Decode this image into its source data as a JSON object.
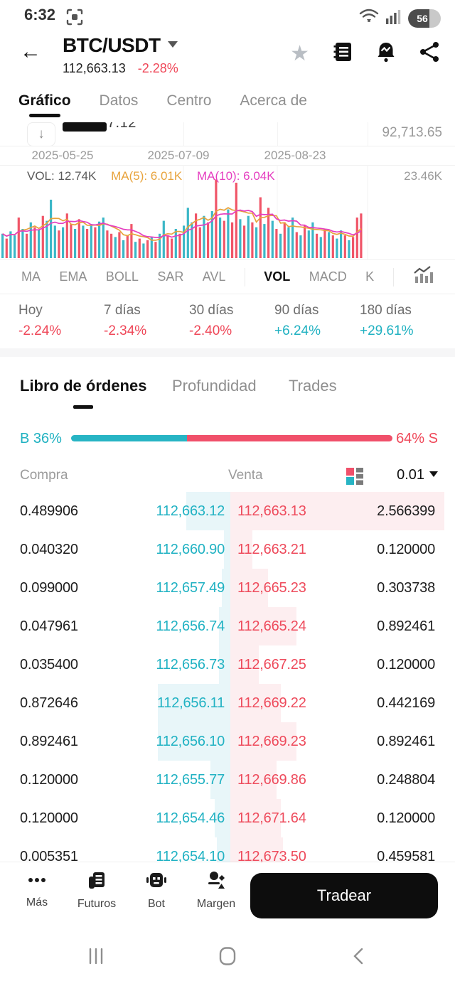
{
  "status_bar": {
    "time": "6:32",
    "battery_level": "56"
  },
  "header": {
    "pair": "BTC/USDT",
    "price": "112,663.13",
    "change": "-2.28%"
  },
  "nav_tabs": {
    "items": [
      "Gráfico",
      "Datos",
      "Centro",
      "Acerca de"
    ],
    "active": 0
  },
  "price_chart": {
    "truncated_price_label": "0,077.12",
    "axis_label": "92,713.65",
    "dates": [
      "2025-05-25",
      "2025-07-09",
      "2025-08-23"
    ]
  },
  "volume_pane": {
    "vol_label": "VOL: 12.74K",
    "ma5_label": "MA(5): 6.01K",
    "ma10_label": "MA(10): 6.04K",
    "axis_label": "23.46K"
  },
  "chart_data": {
    "type": "bar",
    "title": "BTC/USDT volume pane with MA(5)/MA(10) overlay",
    "ylabel": "Volume",
    "axis_max_label": "23.46K",
    "axis_max_k": 23.46,
    "latest_vol_k": 12.74,
    "ma5_k": 6.01,
    "ma10_k": 6.04,
    "values_rel": [
      0.3,
      0.24,
      0.33,
      0.28,
      0.5,
      0.36,
      0.3,
      0.44,
      0.38,
      0.35,
      0.52,
      0.46,
      0.72,
      0.4,
      0.34,
      0.38,
      0.55,
      0.42,
      0.36,
      0.48,
      0.4,
      0.36,
      0.42,
      0.38,
      0.45,
      0.5,
      0.34,
      0.3,
      0.26,
      0.32,
      0.22,
      0.28,
      0.42,
      0.2,
      0.24,
      0.18,
      0.22,
      0.26,
      0.2,
      0.3,
      0.46,
      0.28,
      0.24,
      0.36,
      0.3,
      0.4,
      0.62,
      0.44,
      0.55,
      0.38,
      0.52,
      0.44,
      0.58,
      0.97,
      0.5,
      0.46,
      0.6,
      0.44,
      0.93,
      0.48,
      0.4,
      0.52,
      0.44,
      0.38,
      0.75,
      0.42,
      0.62,
      0.46,
      0.36,
      0.3,
      0.44,
      0.38,
      0.5,
      0.32,
      0.28,
      0.4,
      0.34,
      0.44,
      0.3,
      0.26,
      0.36,
      0.32,
      0.28,
      0.24,
      0.34,
      0.28,
      0.22,
      0.26,
      0.5,
      0.55
    ],
    "sides": [
      "u",
      "d",
      "u",
      "u",
      "d",
      "u",
      "d",
      "u",
      "d",
      "u",
      "d",
      "u",
      "u",
      "u",
      "d",
      "u",
      "d",
      "d",
      "u",
      "d",
      "u",
      "d",
      "u",
      "d",
      "u",
      "u",
      "d",
      "d",
      "u",
      "d",
      "u",
      "d",
      "d",
      "u",
      "d",
      "u",
      "d",
      "u",
      "d",
      "u",
      "u",
      "d",
      "d",
      "u",
      "d",
      "u",
      "u",
      "u",
      "d",
      "d",
      "u",
      "d",
      "u",
      "d",
      "u",
      "d",
      "u",
      "d",
      "d",
      "u",
      "d",
      "u",
      "d",
      "u",
      "d",
      "u",
      "d",
      "u",
      "d",
      "u",
      "d",
      "u",
      "u",
      "d",
      "u",
      "d",
      "u",
      "u",
      "d",
      "u",
      "d",
      "u",
      "d",
      "u",
      "u",
      "d",
      "u",
      "d",
      "d",
      "d"
    ],
    "colors": {
      "up": "#3bb7c7",
      "down": "#f05568",
      "ma5": "#e8a33c",
      "ma10": "#e53ec0"
    },
    "ma_windows": [
      5,
      10
    ]
  },
  "indicator_bar": {
    "items": [
      "MA",
      "EMA",
      "BOLL",
      "SAR",
      "AVL",
      "VOL",
      "MACD",
      "K"
    ],
    "active": 5,
    "dividers_after": [
      4,
      7
    ]
  },
  "periods": [
    {
      "label": "Hoy",
      "value": "-2.24%",
      "direction": "down"
    },
    {
      "label": "7 días",
      "value": "-2.34%",
      "direction": "down"
    },
    {
      "label": "30 días",
      "value": "-2.40%",
      "direction": "down"
    },
    {
      "label": "90 días",
      "value": "+6.24%",
      "direction": "up"
    },
    {
      "label": "180 días",
      "value": "+29.61%",
      "direction": "up"
    }
  ],
  "orderbook_tabs": {
    "items": [
      "Libro de órdenes",
      "Profundidad",
      "Trades"
    ],
    "active": 0,
    "lefts": [
      28,
      242,
      406
    ]
  },
  "ratio_bar": {
    "buy_label": "B 36%",
    "sell_label": "64% S",
    "buy_pct": 36
  },
  "orderbook": {
    "col_bid": "Compra",
    "col_ask": "Venta",
    "tick_size": "0.01",
    "rows": [
      {
        "bid_qty": "0.489906",
        "bid_price": "112,663.12",
        "ask_price": "112,663.13",
        "ask_qty": "2.566399",
        "bid_depth": 0.2,
        "ask_depth": 0.97
      },
      {
        "bid_qty": "0.040320",
        "bid_price": "112,660.90",
        "ask_price": "112,663.21",
        "ask_qty": "0.120000",
        "bid_depth": 0.03,
        "ask_depth": 0.1
      },
      {
        "bid_qty": "0.099000",
        "bid_price": "112,657.49",
        "ask_price": "112,665.23",
        "ask_qty": "0.303738",
        "bid_depth": 0.04,
        "ask_depth": 0.17
      },
      {
        "bid_qty": "0.047961",
        "bid_price": "112,656.74",
        "ask_price": "112,665.24",
        "ask_qty": "0.892461",
        "bid_depth": 0.05,
        "ask_depth": 0.3
      },
      {
        "bid_qty": "0.035400",
        "bid_price": "112,656.73",
        "ask_price": "112,667.25",
        "ask_qty": "0.120000",
        "bid_depth": 0.05,
        "ask_depth": 0.13
      },
      {
        "bid_qty": "0.872646",
        "bid_price": "112,656.11",
        "ask_price": "112,669.22",
        "ask_qty": "0.442169",
        "bid_depth": 0.33,
        "ask_depth": 0.23
      },
      {
        "bid_qty": "0.892461",
        "bid_price": "112,656.10",
        "ask_price": "112,669.23",
        "ask_qty": "0.892461",
        "bid_depth": 0.33,
        "ask_depth": 0.3
      },
      {
        "bid_qty": "0.120000",
        "bid_price": "112,655.77",
        "ask_price": "112,669.86",
        "ask_qty": "0.248804",
        "bid_depth": 0.09,
        "ask_depth": 0.21
      },
      {
        "bid_qty": "0.120000",
        "bid_price": "112,654.46",
        "ask_price": "112,671.64",
        "ask_qty": "0.120000",
        "bid_depth": 0.07,
        "ask_depth": 0.23
      },
      {
        "bid_qty": "0.005351",
        "bid_price": "112,654.10",
        "ask_price": "112,673.50",
        "ask_qty": "0.459581",
        "bid_depth": 0.06,
        "ask_depth": 0.24
      }
    ]
  },
  "bottom_bar": {
    "items": [
      {
        "label": "Más",
        "icon": "more-icon"
      },
      {
        "label": "Futuros",
        "icon": "futures-icon"
      },
      {
        "label": "Bot",
        "icon": "bot-icon"
      },
      {
        "label": "Margen",
        "icon": "margin-icon"
      }
    ],
    "trade_button": "Tradear"
  },
  "system_nav": {
    "icons": [
      "recents-icon",
      "home-icon",
      "back-icon"
    ]
  }
}
